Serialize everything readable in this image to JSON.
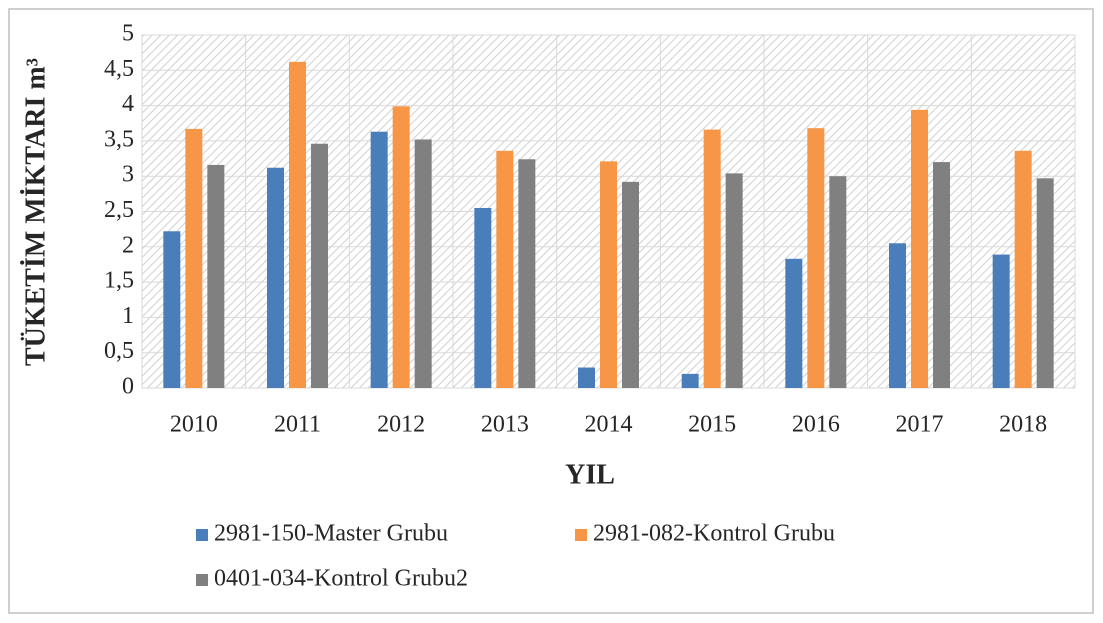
{
  "chart_data": {
    "type": "bar",
    "x_label": "YIL",
    "y_label": "TÜKETİM MİKTARI m³",
    "categories": [
      "2010",
      "2011",
      "2012",
      "2013",
      "2014",
      "2015",
      "2016",
      "2017",
      "2018"
    ],
    "series": [
      {
        "name": "2981-150-Master Grubu",
        "color": "#4a7ebb",
        "values": [
          2.22,
          3.12,
          3.63,
          2.55,
          0.29,
          0.2,
          1.83,
          2.05,
          1.89
        ]
      },
      {
        "name": "2981-082-Kontrol Grubu",
        "color": "#f79646",
        "values": [
          3.67,
          4.62,
          3.99,
          3.36,
          3.21,
          3.66,
          3.68,
          3.94,
          3.36
        ]
      },
      {
        "name": "0401-034-Kontrol Grubu2",
        "color": "#808080",
        "values": [
          3.16,
          3.46,
          3.52,
          3.24,
          2.92,
          3.04,
          3.0,
          3.2,
          2.97
        ]
      }
    ],
    "ylim": [
      0,
      5
    ],
    "yticks": [
      0,
      {
        "value": 0.5,
        "label": "0,5"
      },
      1,
      {
        "value": 1.5,
        "label": "1,5"
      },
      2,
      {
        "value": 2.5,
        "label": "2,5"
      },
      3,
      {
        "value": 3.5,
        "label": "3,5"
      },
      4,
      {
        "value": 4.5,
        "label": "4,5"
      },
      5
    ],
    "grid": true
  }
}
